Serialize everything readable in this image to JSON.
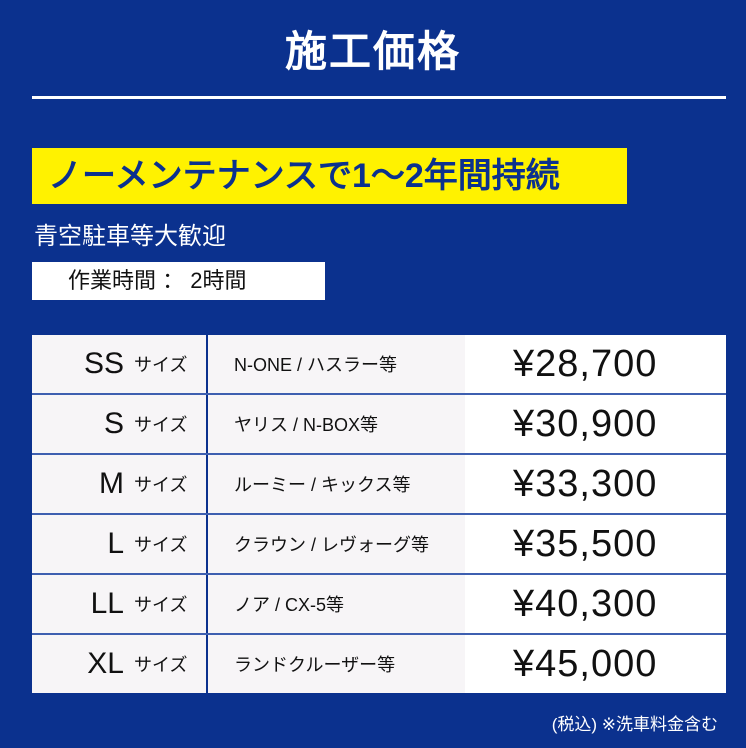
{
  "title": "施工価格",
  "highlight": "ノーメンテナンスで1～2年間持続",
  "subtitle": "青空駐車等大歓迎",
  "work_time": "作業時間 ： 2時間",
  "rows": [
    {
      "size": "SS",
      "unit": "サイズ",
      "cars": "N-ONE / ハスラー等",
      "price": "¥28,700"
    },
    {
      "size": "S",
      "unit": "サイズ",
      "cars": "ヤリス / N-BOX等",
      "price": "¥30,900"
    },
    {
      "size": "M",
      "unit": "サイズ",
      "cars": "ルーミー / キックス等",
      "price": "¥33,300"
    },
    {
      "size": "L",
      "unit": "サイズ",
      "cars": "クラウン / レヴォーグ等",
      "price": "¥35,500"
    },
    {
      "size": "LL",
      "unit": "サイズ",
      "cars": "ノア / CX-5等",
      "price": "¥40,300"
    },
    {
      "size": "XL",
      "unit": "サイズ",
      "cars": "ランドクルーザー等",
      "price": "¥45,000"
    }
  ],
  "note": "(税込) ※洗車料金含む",
  "colors": {
    "background": "#0b318e",
    "highlight": "#fff200"
  }
}
